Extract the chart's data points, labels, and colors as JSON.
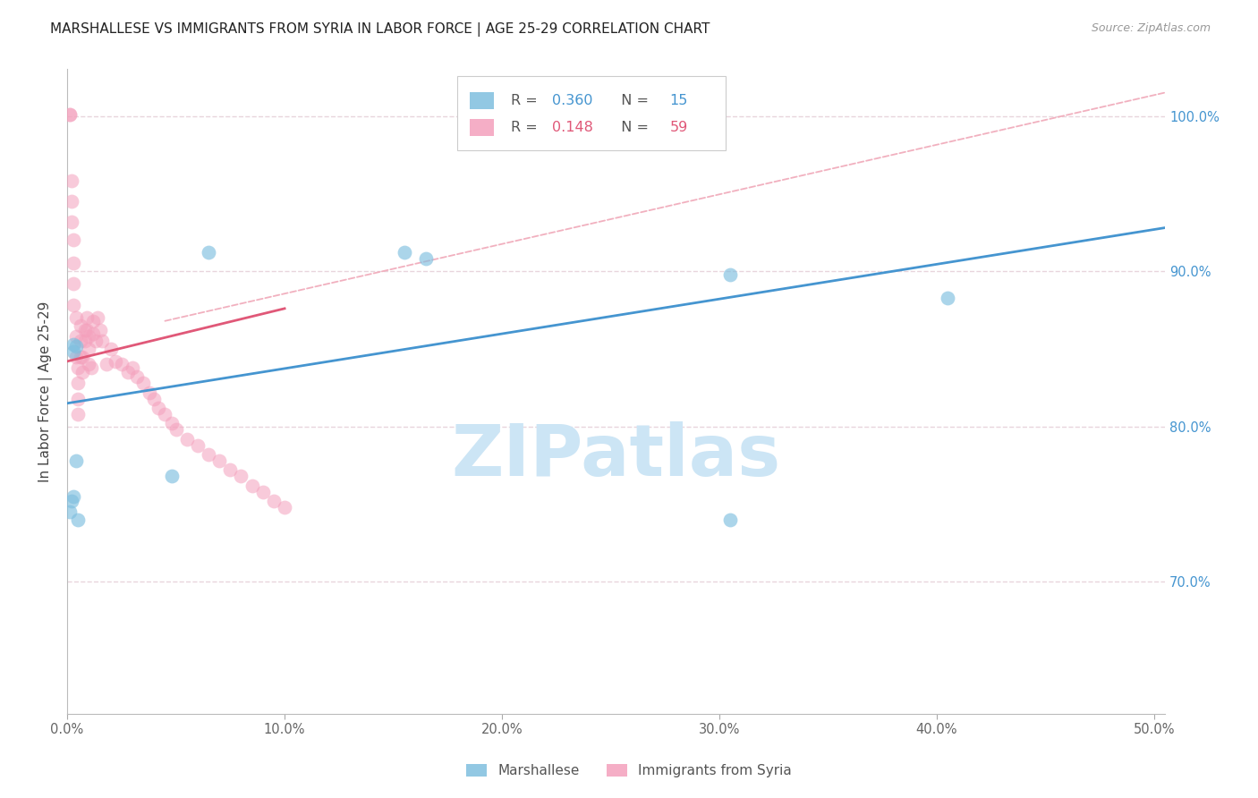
{
  "title": "MARSHALLESE VS IMMIGRANTS FROM SYRIA IN LABOR FORCE | AGE 25-29 CORRELATION CHART",
  "source": "Source: ZipAtlas.com",
  "ylabel": "In Labor Force | Age 25-29",
  "xlim": [
    0.0,
    0.505
  ],
  "ylim": [
    0.615,
    1.03
  ],
  "xticks": [
    0.0,
    0.1,
    0.2,
    0.3,
    0.4,
    0.5
  ],
  "xtick_labels": [
    "0.0%",
    "10.0%",
    "20.0%",
    "30.0%",
    "40.0%",
    "50.0%"
  ],
  "yticks": [
    0.7,
    0.8,
    0.9,
    1.0
  ],
  "ytick_labels": [
    "70.0%",
    "80.0%",
    "90.0%",
    "100.0%"
  ],
  "blue_scatter_color": "#7fbfdf",
  "pink_scatter_color": "#f4a0bc",
  "blue_line_color": "#4595d0",
  "pink_line_color": "#e05878",
  "diag_line_color": "#f0a8b8",
  "watermark": "ZIPatlas",
  "watermark_color": "#cce5f5",
  "background_color": "#ffffff",
  "grid_color": "#e8d5dc",
  "title_fontsize": 11,
  "axis_label_fontsize": 11,
  "tick_fontsize": 10.5,
  "R_blue": "0.360",
  "N_blue": "15",
  "R_pink": "0.148",
  "N_pink": "59",
  "legend_blue_label": "Marshallese",
  "legend_pink_label": "Immigrants from Syria",
  "marshallese_x": [
    0.001,
    0.002,
    0.003,
    0.003,
    0.003,
    0.004,
    0.004,
    0.005,
    0.048,
    0.065,
    0.155,
    0.165,
    0.305,
    0.305,
    0.405
  ],
  "marshallese_y": [
    0.745,
    0.752,
    0.755,
    0.848,
    0.853,
    0.778,
    0.852,
    0.74,
    0.768,
    0.912,
    0.912,
    0.908,
    0.898,
    0.74,
    0.883
  ],
  "syria_x": [
    0.001,
    0.001,
    0.002,
    0.002,
    0.002,
    0.003,
    0.003,
    0.003,
    0.003,
    0.004,
    0.004,
    0.004,
    0.005,
    0.005,
    0.005,
    0.005,
    0.006,
    0.006,
    0.006,
    0.007,
    0.007,
    0.008,
    0.008,
    0.009,
    0.009,
    0.01,
    0.01,
    0.01,
    0.011,
    0.012,
    0.012,
    0.013,
    0.014,
    0.015,
    0.016,
    0.018,
    0.02,
    0.022,
    0.025,
    0.028,
    0.03,
    0.032,
    0.035,
    0.038,
    0.04,
    0.042,
    0.045,
    0.048,
    0.05,
    0.055,
    0.06,
    0.065,
    0.07,
    0.075,
    0.08,
    0.085,
    0.09,
    0.095,
    0.1
  ],
  "syria_y": [
    1.001,
    1.001,
    0.958,
    0.945,
    0.932,
    0.92,
    0.905,
    0.892,
    0.878,
    0.87,
    0.858,
    0.845,
    0.838,
    0.828,
    0.818,
    0.808,
    0.865,
    0.855,
    0.845,
    0.845,
    0.835,
    0.862,
    0.855,
    0.87,
    0.862,
    0.858,
    0.85,
    0.84,
    0.838,
    0.868,
    0.86,
    0.855,
    0.87,
    0.862,
    0.855,
    0.84,
    0.85,
    0.842,
    0.84,
    0.835,
    0.838,
    0.832,
    0.828,
    0.822,
    0.818,
    0.812,
    0.808,
    0.802,
    0.798,
    0.792,
    0.788,
    0.782,
    0.778,
    0.772,
    0.768,
    0.762,
    0.758,
    0.752,
    0.748
  ],
  "blue_line_x": [
    0.0,
    0.505
  ],
  "blue_line_y": [
    0.815,
    0.928
  ],
  "pink_line_x": [
    0.0,
    0.1
  ],
  "pink_line_y": [
    0.842,
    0.876
  ],
  "diag_line_x": [
    0.045,
    0.505
  ],
  "diag_line_y": [
    0.868,
    1.015
  ]
}
